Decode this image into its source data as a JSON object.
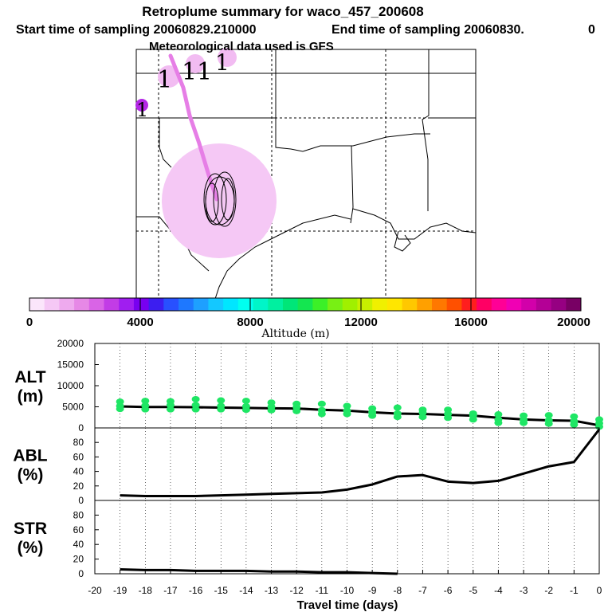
{
  "header": {
    "title": "Retroplume summary for waco_457_200608",
    "start_label": "Start time of sampling 20060829.210000",
    "end_label": "End time of sampling 20060830.",
    "end_value": "0",
    "met_label": "Meteorological data used is GFS"
  },
  "colorbar": {
    "label": "Altitude (m)",
    "tick_labels": [
      "0",
      "4000",
      "8000",
      "12000",
      "16000",
      "20000"
    ],
    "colors": [
      "#fbe6fb",
      "#f5c8f5",
      "#eeaaee",
      "#e688e6",
      "#d964e6",
      "#c23ce6",
      "#a01ef0",
      "#7800f0",
      "#3c1ef0",
      "#2850ff",
      "#1e78ff",
      "#1ea0ff",
      "#14c8ff",
      "#00e6ff",
      "#00fff0",
      "#00f5c8",
      "#00f0a0",
      "#00e678",
      "#14e650",
      "#3cf028",
      "#78f014",
      "#a0f000",
      "#c8f000",
      "#f0f000",
      "#ffe600",
      "#ffc800",
      "#ffa000",
      "#ff7800",
      "#ff5000",
      "#ff1e1e",
      "#ff0064",
      "#ff0096",
      "#f000b4",
      "#d200aa",
      "#b40096",
      "#960082",
      "#780064"
    ]
  },
  "map": {
    "labels": [
      "1",
      "1",
      "1",
      "1",
      "1"
    ],
    "footprint_colors": {
      "plume": "#f5c8f5",
      "plume_small": "#f2bcf2",
      "track": "#e67ee6",
      "point_high": "#b428e6"
    }
  },
  "chart_data": [
    {
      "type": "scatter",
      "panel": "ALT",
      "ylabel": "ALT\n(m)",
      "ylabel_lines": [
        "ALT",
        "(m)"
      ],
      "ylim": [
        0,
        20000
      ],
      "yticks": [
        0,
        5000,
        10000,
        15000,
        20000
      ],
      "ytick_labels": [
        "0",
        "5000",
        "10000",
        "15000",
        "20000"
      ],
      "xlim": [
        -20,
        0
      ],
      "series": [
        {
          "name": "median altitude",
          "color": "#000000",
          "x": [
            -19,
            -18,
            -17,
            -16,
            -15,
            -14,
            -13,
            -12,
            -11,
            -10,
            -9,
            -8,
            -7,
            -6,
            -5,
            -4,
            -3,
            -2,
            -1,
            0
          ],
          "y": [
            5100,
            4950,
            4950,
            4900,
            4800,
            4750,
            4650,
            4600,
            4300,
            4100,
            3700,
            3400,
            3300,
            3100,
            2900,
            2400,
            2000,
            1800,
            1700,
            600
          ]
        },
        {
          "name": "particle altitudes",
          "color": "#1ee664",
          "points": [
            {
              "x": -19,
              "y": 4500
            },
            {
              "x": -19,
              "y": 5200
            },
            {
              "x": -19,
              "y": 6200
            },
            {
              "x": -18,
              "y": 4400
            },
            {
              "x": -18,
              "y": 5300
            },
            {
              "x": -18,
              "y": 6400
            },
            {
              "x": -17,
              "y": 4400
            },
            {
              "x": -17,
              "y": 5400
            },
            {
              "x": -17,
              "y": 6300
            },
            {
              "x": -16,
              "y": 4400
            },
            {
              "x": -16,
              "y": 5400
            },
            {
              "x": -16,
              "y": 6800
            },
            {
              "x": -15,
              "y": 4400
            },
            {
              "x": -15,
              "y": 5200
            },
            {
              "x": -15,
              "y": 6500
            },
            {
              "x": -14,
              "y": 4300
            },
            {
              "x": -14,
              "y": 5100
            },
            {
              "x": -14,
              "y": 6400
            },
            {
              "x": -13,
              "y": 4200
            },
            {
              "x": -13,
              "y": 5000
            },
            {
              "x": -13,
              "y": 6000
            },
            {
              "x": -12,
              "y": 4000
            },
            {
              "x": -12,
              "y": 4900
            },
            {
              "x": -12,
              "y": 5700
            },
            {
              "x": -11,
              "y": 3300
            },
            {
              "x": -11,
              "y": 4200
            },
            {
              "x": -11,
              "y": 5700
            },
            {
              "x": -10,
              "y": 3300
            },
            {
              "x": -10,
              "y": 4100
            },
            {
              "x": -10,
              "y": 5200
            },
            {
              "x": -9,
              "y": 2900
            },
            {
              "x": -9,
              "y": 3700
            },
            {
              "x": -9,
              "y": 4600
            },
            {
              "x": -8,
              "y": 2600
            },
            {
              "x": -8,
              "y": 3400
            },
            {
              "x": -8,
              "y": 4800
            },
            {
              "x": -7,
              "y": 2600
            },
            {
              "x": -7,
              "y": 3600
            },
            {
              "x": -7,
              "y": 4300
            },
            {
              "x": -6,
              "y": 2400
            },
            {
              "x": -6,
              "y": 3300
            },
            {
              "x": -6,
              "y": 4300
            },
            {
              "x": -5,
              "y": 2000
            },
            {
              "x": -5,
              "y": 2900
            },
            {
              "x": -5,
              "y": 3400
            },
            {
              "x": -4,
              "y": 1200
            },
            {
              "x": -4,
              "y": 2000
            },
            {
              "x": -4,
              "y": 3200
            },
            {
              "x": -3,
              "y": 1200
            },
            {
              "x": -3,
              "y": 1900
            },
            {
              "x": -3,
              "y": 2900
            },
            {
              "x": -2,
              "y": 1000
            },
            {
              "x": -2,
              "y": 1800
            },
            {
              "x": -2,
              "y": 3000
            },
            {
              "x": -1,
              "y": 800
            },
            {
              "x": -1,
              "y": 1600
            },
            {
              "x": -1,
              "y": 2700
            },
            {
              "x": 0,
              "y": 300
            },
            {
              "x": 0,
              "y": 1100
            },
            {
              "x": 0,
              "y": 2000
            }
          ]
        }
      ]
    },
    {
      "type": "line",
      "panel": "ABL",
      "ylabel": "ABL\n(%)",
      "ylabel_lines": [
        "ABL",
        "(%)"
      ],
      "ylim": [
        0,
        100
      ],
      "yticks": [
        0,
        20,
        40,
        60,
        80
      ],
      "ytick_labels": [
        "0",
        "20",
        "40",
        "60",
        "80"
      ],
      "xlim": [
        -20,
        0
      ],
      "series": [
        {
          "name": "ABL fraction",
          "color": "#000000",
          "x": [
            -19,
            -18,
            -17,
            -16,
            -15,
            -14,
            -13,
            -12,
            -11,
            -10,
            -9,
            -8,
            -7,
            -6,
            -5,
            -4,
            -3,
            -2,
            -1,
            0
          ],
          "y": [
            7,
            6,
            6,
            6,
            7,
            8,
            9,
            10,
            11,
            15,
            22,
            33,
            35,
            26,
            24,
            27,
            37,
            47,
            53,
            98
          ]
        }
      ]
    },
    {
      "type": "line",
      "panel": "STR",
      "ylabel": "STR\n(%)",
      "ylabel_lines": [
        "STR",
        "(%)"
      ],
      "ylim": [
        0,
        100
      ],
      "yticks": [
        0,
        20,
        40,
        60,
        80
      ],
      "ytick_labels": [
        "0",
        "20",
        "40",
        "60",
        "80"
      ],
      "xlim": [
        -20,
        0
      ],
      "xlabel": "Travel time (days)",
      "xticks": [
        -20,
        -19,
        -18,
        -17,
        -16,
        -15,
        -14,
        -13,
        -12,
        -11,
        -10,
        -9,
        -8,
        -7,
        -6,
        -5,
        -4,
        -3,
        -2,
        -1,
        0
      ],
      "xtick_labels": [
        "-20",
        "-19",
        "-18",
        "-17",
        "-16",
        "-15",
        "-14",
        "-13",
        "-12",
        "-11",
        "-10",
        "-9",
        "-8",
        "-7",
        "-6",
        "-5",
        "-4",
        "-3",
        "-2",
        "-1",
        "0"
      ],
      "series": [
        {
          "name": "STR fraction",
          "color": "#000000",
          "x": [
            -19,
            -18,
            -17,
            -16,
            -15,
            -14,
            -13,
            -12,
            -11,
            -10,
            -9,
            -8
          ],
          "y": [
            6,
            5,
            5,
            4,
            4,
            4,
            3,
            3,
            2,
            2,
            1,
            0
          ]
        }
      ]
    }
  ]
}
